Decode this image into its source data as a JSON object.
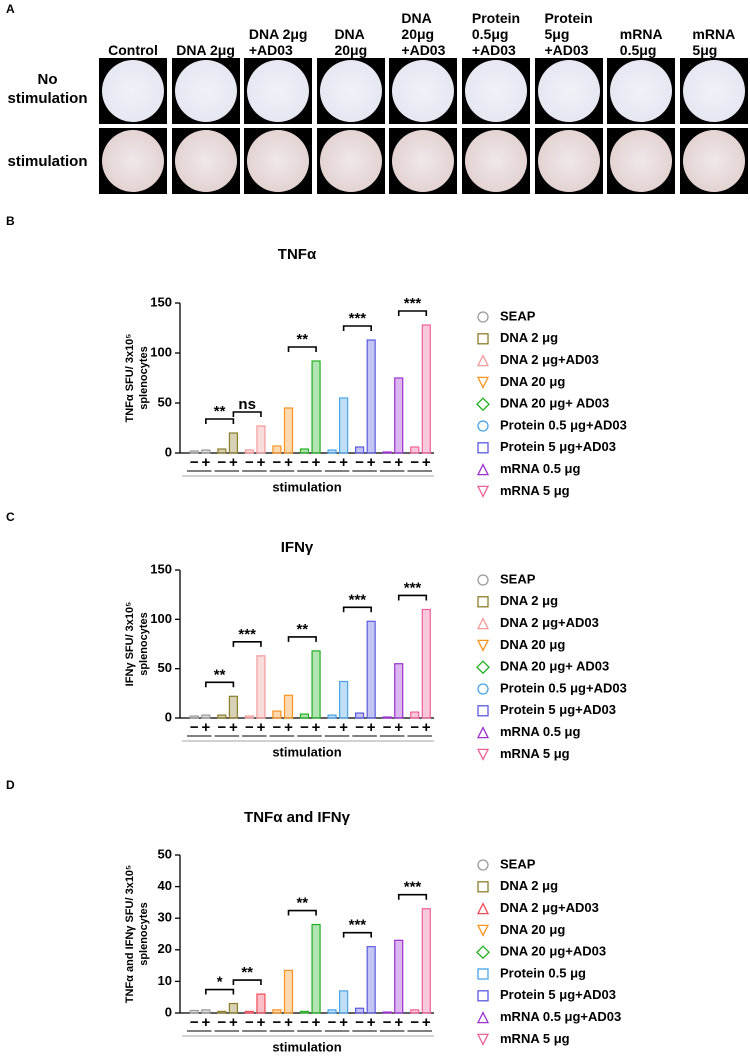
{
  "panel_a": {
    "label": "A",
    "columns": [
      "Control",
      "DNA 2μg",
      "DNA 2μg\n+AD03",
      "DNA\n20μg",
      "DNA\n20μg\n+AD03",
      "Protein\n0.5μg\n+AD03",
      "Protein\n5μg\n+AD03",
      "mRNA\n0.5μg",
      "mRNA\n5μg"
    ],
    "rows": [
      "No\nstimulation",
      "stimulation"
    ]
  },
  "chart_data": [
    {
      "type": "bar",
      "panel": "B",
      "title": "TNFα",
      "ylabel": [
        "TNFα SFU/ 3x10⁵",
        "splenocytes"
      ],
      "xlabel": "stimulation",
      "stim_labels": [
        "−",
        "+"
      ],
      "ylim": [
        0,
        150
      ],
      "yticks": [
        0,
        50,
        100,
        150
      ],
      "series": [
        {
          "name": "SEAP",
          "color": "#9a9a9a",
          "marker": "circle",
          "values": [
            2,
            3
          ]
        },
        {
          "name": "DNA 2 μg",
          "color": "#8c7d2c",
          "marker": "square",
          "values": [
            4,
            20
          ],
          "significance": "**"
        },
        {
          "name": "DNA 2 μg+AD03",
          "color": "#f39a9a",
          "marker": "triangle-up",
          "values": [
            3,
            27
          ],
          "significance": "ns"
        },
        {
          "name": "DNA 20 μg",
          "color": "#f7931e",
          "marker": "triangle-down",
          "values": [
            7,
            45
          ]
        },
        {
          "name": "DNA 20 μg+ AD03",
          "color": "#22b022",
          "marker": "diamond",
          "values": [
            4,
            92
          ],
          "significance": "**"
        },
        {
          "name": "Protein 0.5 μg+AD03",
          "color": "#4aa3e8",
          "marker": "circle",
          "values": [
            3,
            55
          ]
        },
        {
          "name": "Protein 5 μg+AD03",
          "color": "#5a5ae0",
          "marker": "square",
          "values": [
            6,
            113
          ],
          "significance": "***"
        },
        {
          "name": "mRNA 0.5 μg",
          "color": "#9b30d0",
          "marker": "triangle-up",
          "values": [
            1,
            75
          ]
        },
        {
          "name": "mRNA 5 μg",
          "color": "#f0609a",
          "marker": "triangle-down",
          "values": [
            6,
            128
          ],
          "significance": "***"
        }
      ]
    },
    {
      "type": "bar",
      "panel": "C",
      "title": "IFNγ",
      "ylabel": [
        "IFNγ SFU/ 3x10⁵",
        "splenocytes"
      ],
      "xlabel": "stimulation",
      "stim_labels": [
        "−",
        "+"
      ],
      "ylim": [
        0,
        150
      ],
      "yticks": [
        0,
        50,
        100,
        150
      ],
      "series": [
        {
          "name": "SEAP",
          "color": "#9a9a9a",
          "marker": "circle",
          "values": [
            2,
            3
          ]
        },
        {
          "name": "DNA 2 μg",
          "color": "#8c7d2c",
          "marker": "square",
          "values": [
            3,
            22
          ],
          "significance": "**"
        },
        {
          "name": "DNA 2 μg+AD03",
          "color": "#f39a9a",
          "marker": "triangle-up",
          "values": [
            2,
            63
          ],
          "significance": "***"
        },
        {
          "name": "DNA 20 μg",
          "color": "#f7931e",
          "marker": "triangle-down",
          "values": [
            7,
            23
          ]
        },
        {
          "name": "DNA 20 μg+ AD03",
          "color": "#22b022",
          "marker": "diamond",
          "values": [
            4,
            68
          ],
          "significance": "**"
        },
        {
          "name": "Protein 0.5 μg+AD03",
          "color": "#4aa3e8",
          "marker": "circle",
          "values": [
            3,
            37
          ]
        },
        {
          "name": "Protein 5 μg+AD03",
          "color": "#5a5ae0",
          "marker": "square",
          "values": [
            5,
            98
          ],
          "significance": "***"
        },
        {
          "name": "mRNA 0.5 μg",
          "color": "#9b30d0",
          "marker": "triangle-up",
          "values": [
            1,
            55
          ]
        },
        {
          "name": "mRNA 5 μg",
          "color": "#f0609a",
          "marker": "triangle-down",
          "values": [
            6,
            110
          ],
          "significance": "***"
        }
      ]
    },
    {
      "type": "bar",
      "panel": "D",
      "title": "TNFα and IFNγ",
      "ylabel": [
        "TNFα and IFNγ SFU/ 3x10⁵",
        "splenocytes"
      ],
      "xlabel": "stimulation",
      "stim_labels": [
        "−",
        "+"
      ],
      "ylim": [
        0,
        50
      ],
      "yticks": [
        0,
        10,
        20,
        30,
        40,
        50
      ],
      "series": [
        {
          "name": "SEAP",
          "color": "#9a9a9a",
          "marker": "circle",
          "values": [
            0.8,
            1
          ]
        },
        {
          "name": "DNA 2 μg",
          "color": "#8c7d2c",
          "marker": "square",
          "values": [
            0.5,
            3
          ],
          "significance": "*"
        },
        {
          "name": "DNA 2 μg+AD03",
          "color": "#f04a5a",
          "marker": "triangle-up",
          "values": [
            0.5,
            6
          ],
          "significance": "**"
        },
        {
          "name": "DNA 20 μg",
          "color": "#f7931e",
          "marker": "triangle-down",
          "values": [
            1,
            13.5
          ]
        },
        {
          "name": "DNA 20 μg+AD03",
          "color": "#22b022",
          "marker": "diamond",
          "values": [
            0.5,
            28
          ],
          "significance": "**"
        },
        {
          "name": "Protein 0.5 μg",
          "color": "#4aa3e8",
          "marker": "square",
          "values": [
            1,
            7
          ]
        },
        {
          "name": "Protein 5 μg+AD03",
          "color": "#5a5ae0",
          "marker": "square",
          "values": [
            1.5,
            21
          ],
          "significance": "***"
        },
        {
          "name": "mRNA 0.5 μg+AD03",
          "color": "#9b30d0",
          "marker": "triangle-up",
          "values": [
            0.3,
            23
          ]
        },
        {
          "name": "mRNA 5 μg",
          "color": "#f0609a",
          "marker": "triangle-down",
          "values": [
            1,
            33
          ],
          "significance": "***"
        }
      ]
    }
  ]
}
